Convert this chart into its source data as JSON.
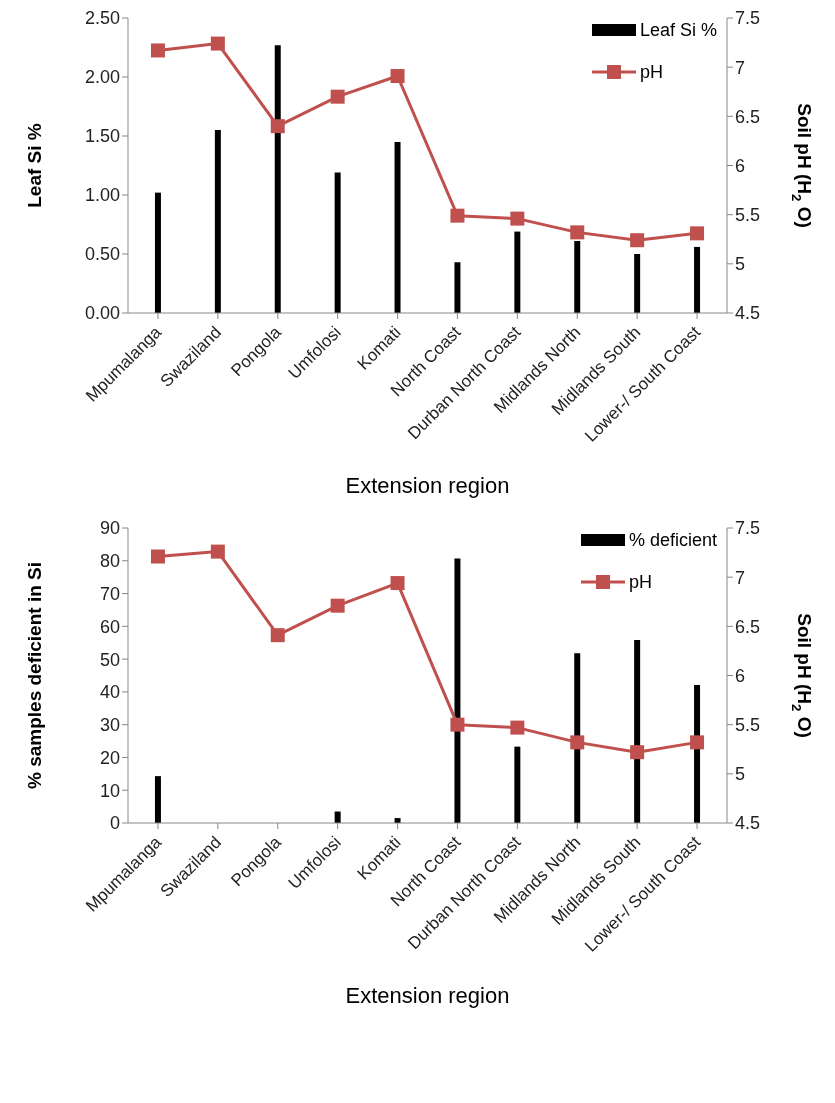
{
  "chart_data": [
    {
      "type": "bar",
      "xlabel": "Extension region",
      "ylabel": "Leaf Si %",
      "y2label": "Soil pH (H$_{2}$O)",
      "categories": [
        "Mpumalanga",
        "Swaziland",
        "Pongola",
        "Umfolosi",
        "Komati",
        "North Coast",
        "Durban North Coast",
        "Midlands North",
        "Midlands South",
        "Lower-/ South Coast"
      ],
      "series": [
        {
          "name": "Leaf Si %",
          "color": "#000000",
          "values": [
            1.02,
            1.55,
            2.27,
            1.19,
            1.45,
            0.43,
            0.69,
            0.61,
            0.5,
            0.56
          ]
        },
        {
          "name": "pH",
          "type": "line",
          "axis": "y2",
          "color": "#c0504d",
          "values": [
            7.17,
            7.24,
            6.4,
            6.7,
            6.91,
            5.49,
            5.46,
            5.32,
            5.24,
            5.31
          ]
        }
      ],
      "ylim": [
        0,
        2.5
      ],
      "yticks": [
        {
          "value": 0,
          "label": "0.00"
        },
        {
          "value": 0.5,
          "label": "0.50"
        },
        {
          "value": 1,
          "label": "1.00"
        },
        {
          "value": 1.5,
          "label": "1.50"
        },
        {
          "value": 2,
          "label": "2.00"
        },
        {
          "value": 2.5,
          "label": "2.50"
        }
      ],
      "y2lim": [
        4.5,
        7.5
      ],
      "y2ticks": [
        4.5,
        5,
        5.5,
        6,
        6.5,
        7,
        7.5
      ],
      "legend": "top right",
      "marker": "square",
      "grid": false
    },
    {
      "type": "bar",
      "xlabel": "Extension region",
      "ylabel": "% samples deficient in Si",
      "y2label": "Soil pH (H$_{2}$O)",
      "categories": [
        "Mpumalanga",
        "Swaziland",
        "Pongola",
        "Umfolosi",
        "Komati",
        "North Coast",
        "Durban North Coast",
        "Midlands North",
        "Midlands South",
        "Lower-/ South Coast"
      ],
      "series": [
        {
          "name": "% deficient",
          "color": "#000000",
          "values": [
            14.3,
            0,
            0,
            3.5,
            1.5,
            80.7,
            23.3,
            51.8,
            55.8,
            42.1
          ]
        },
        {
          "name": "pH",
          "type": "line",
          "axis": "y2",
          "color": "#c0504d",
          "values": [
            7.21,
            7.26,
            6.41,
            6.71,
            6.94,
            5.5,
            5.47,
            5.32,
            5.22,
            5.32
          ]
        }
      ],
      "ylim": [
        0,
        90
      ],
      "yticks": [
        0,
        10,
        20,
        30,
        40,
        50,
        60,
        70,
        80,
        90
      ],
      "y2lim": [
        4.5,
        7.5
      ],
      "y2ticks": [
        4.5,
        5,
        5.5,
        6,
        6.5,
        7,
        7.5
      ],
      "legend": "top right",
      "marker": "square",
      "grid": false
    }
  ]
}
